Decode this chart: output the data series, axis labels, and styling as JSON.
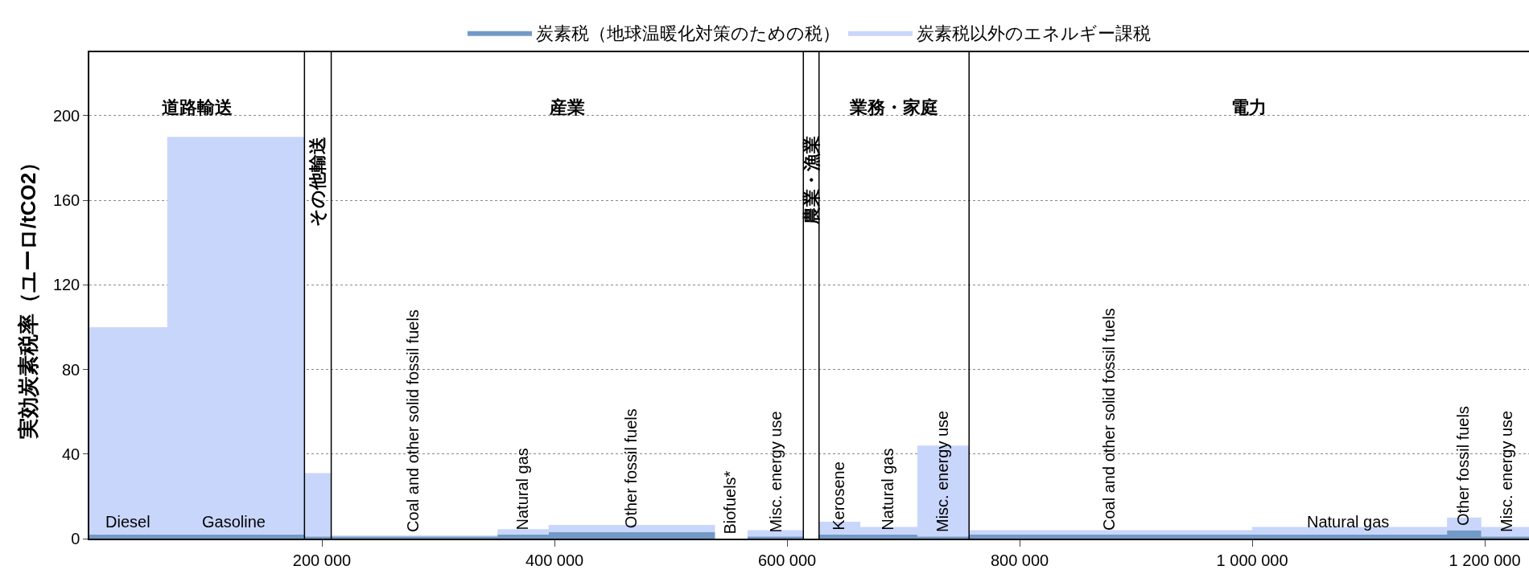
{
  "chart_data": {
    "type": "area",
    "stacked": true,
    "ylabel": "実効炭素税率（ユーロ/tCO2）",
    "x": [
      0,
      67000,
      67000,
      185000,
      185000,
      208000,
      208000,
      351000,
      351000,
      395000,
      395000,
      538000,
      538000,
      566000,
      566000,
      614000,
      614000,
      627500,
      627500,
      663000,
      663000,
      712000,
      712000,
      756500,
      756500,
      1000000,
      1000000,
      1167500,
      1167500,
      1197000,
      1197000,
      1238000
    ],
    "series": [
      {
        "name": "炭素税（地球温暖化対策のための税）",
        "color": "#7399c6",
        "values": [
          2,
          2,
          2,
          2,
          1,
          1,
          1,
          1,
          2,
          2,
          3,
          3,
          0,
          0,
          1,
          1,
          0,
          0,
          2,
          2,
          2,
          2,
          1,
          1,
          2,
          2,
          2,
          2,
          4,
          4,
          1,
          1
        ]
      },
      {
        "name": "炭素税以外のエネルギー課税",
        "color": "#c9d6fb",
        "values": [
          98,
          98,
          188,
          188,
          30,
          30,
          0.5,
          0.5,
          2.5,
          2.5,
          3.5,
          3.5,
          0,
          0,
          3,
          3,
          0,
          0,
          6,
          6,
          3.5,
          3.5,
          43,
          43,
          2,
          2,
          3.5,
          3.5,
          6,
          6,
          4.5,
          4.5
        ]
      }
    ],
    "xlim": [
      0,
      1238000
    ],
    "xticks": [
      {
        "value": 200000,
        "label": "200 000"
      },
      {
        "value": 400000,
        "label": "400 000"
      },
      {
        "value": 600000,
        "label": "600 000"
      },
      {
        "value": 800000,
        "label": "800 000"
      },
      {
        "value": 1000000,
        "label": "1 000 000"
      },
      {
        "value": 1200000,
        "label": "1 200 000"
      }
    ],
    "ylim": [
      0,
      230
    ],
    "yticks": [
      0,
      40,
      80,
      120,
      160,
      200
    ],
    "grid": "y",
    "legend": "top",
    "ref_lines": [
      {
        "axis": "x",
        "value": 185000
      },
      {
        "axis": "x",
        "value": 208000
      },
      {
        "axis": "x",
        "value": 614000
      },
      {
        "axis": "x",
        "value": 627500
      },
      {
        "axis": "x",
        "value": 756500
      }
    ],
    "annotations": [
      "道路輸送",
      "その他輸送",
      "産業",
      "農業・漁業",
      "業務・家庭",
      "電力",
      {
        "text": "Diesel",
        "x": 32900,
        "y": 2
      },
      {
        "text": "Gasoline",
        "x": 124400,
        "y": 2
      },
      {
        "text": "Coal and other solid fossil fuels",
        "x": 278200,
        "y": 1
      },
      {
        "text": "Natural gas",
        "x": 372100,
        "y": 2
      },
      {
        "text": "Other fossil fuels",
        "x": 465400,
        "y": 3
      },
      {
        "text": "Biofuels*",
        "x": 550200,
        "y": 0
      },
      {
        "text": "Misc. energy use",
        "x": 590000,
        "y": 1
      },
      {
        "text": "Kerosene",
        "x": 644300,
        "y": 2
      },
      {
        "text": "Natural gas",
        "x": 686500,
        "y": 2
      },
      {
        "text": "Misc. energy use",
        "x": 733600,
        "y": 1
      },
      {
        "text": "Coal and other solid fossil fuels",
        "x": 876600,
        "y": 2
      },
      {
        "text": "Natural gas",
        "x": 1082600,
        "y": 2
      },
      {
        "text": "Other fossil fuels",
        "x": 1181300,
        "y": 4
      },
      {
        "text": "Misc. energy use",
        "x": 1218700,
        "y": 1
      }
    ]
  }
}
